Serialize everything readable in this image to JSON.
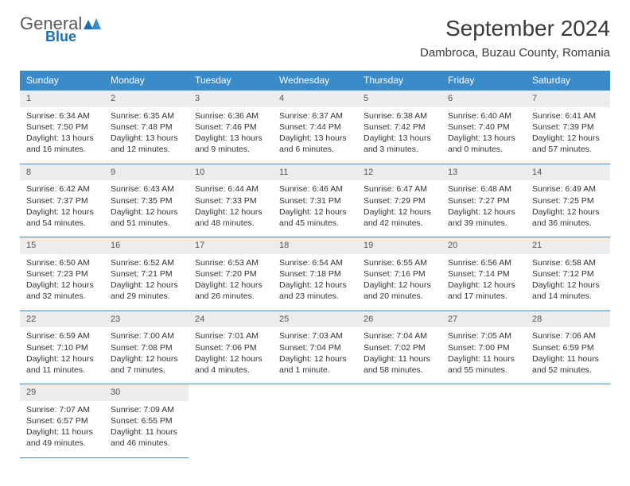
{
  "logo": {
    "word1": "General",
    "word2": "Blue"
  },
  "title": "September 2024",
  "location": "Dambroca, Buzau County, Romania",
  "day_headers": [
    "Sunday",
    "Monday",
    "Tuesday",
    "Wednesday",
    "Thursday",
    "Friday",
    "Saturday"
  ],
  "colors": {
    "header_bg": "#3a8bc9",
    "daynum_bg": "#ececec",
    "border": "#3a8bc9"
  },
  "weeks": [
    [
      {
        "num": "1",
        "sunrise": "6:34 AM",
        "sunset": "7:50 PM",
        "daylight": "13 hours and 16 minutes."
      },
      {
        "num": "2",
        "sunrise": "6:35 AM",
        "sunset": "7:48 PM",
        "daylight": "13 hours and 12 minutes."
      },
      {
        "num": "3",
        "sunrise": "6:36 AM",
        "sunset": "7:46 PM",
        "daylight": "13 hours and 9 minutes."
      },
      {
        "num": "4",
        "sunrise": "6:37 AM",
        "sunset": "7:44 PM",
        "daylight": "13 hours and 6 minutes."
      },
      {
        "num": "5",
        "sunrise": "6:38 AM",
        "sunset": "7:42 PM",
        "daylight": "13 hours and 3 minutes."
      },
      {
        "num": "6",
        "sunrise": "6:40 AM",
        "sunset": "7:40 PM",
        "daylight": "13 hours and 0 minutes."
      },
      {
        "num": "7",
        "sunrise": "6:41 AM",
        "sunset": "7:39 PM",
        "daylight": "12 hours and 57 minutes."
      }
    ],
    [
      {
        "num": "8",
        "sunrise": "6:42 AM",
        "sunset": "7:37 PM",
        "daylight": "12 hours and 54 minutes."
      },
      {
        "num": "9",
        "sunrise": "6:43 AM",
        "sunset": "7:35 PM",
        "daylight": "12 hours and 51 minutes."
      },
      {
        "num": "10",
        "sunrise": "6:44 AM",
        "sunset": "7:33 PM",
        "daylight": "12 hours and 48 minutes."
      },
      {
        "num": "11",
        "sunrise": "6:46 AM",
        "sunset": "7:31 PM",
        "daylight": "12 hours and 45 minutes."
      },
      {
        "num": "12",
        "sunrise": "6:47 AM",
        "sunset": "7:29 PM",
        "daylight": "12 hours and 42 minutes."
      },
      {
        "num": "13",
        "sunrise": "6:48 AM",
        "sunset": "7:27 PM",
        "daylight": "12 hours and 39 minutes."
      },
      {
        "num": "14",
        "sunrise": "6:49 AM",
        "sunset": "7:25 PM",
        "daylight": "12 hours and 36 minutes."
      }
    ],
    [
      {
        "num": "15",
        "sunrise": "6:50 AM",
        "sunset": "7:23 PM",
        "daylight": "12 hours and 32 minutes."
      },
      {
        "num": "16",
        "sunrise": "6:52 AM",
        "sunset": "7:21 PM",
        "daylight": "12 hours and 29 minutes."
      },
      {
        "num": "17",
        "sunrise": "6:53 AM",
        "sunset": "7:20 PM",
        "daylight": "12 hours and 26 minutes."
      },
      {
        "num": "18",
        "sunrise": "6:54 AM",
        "sunset": "7:18 PM",
        "daylight": "12 hours and 23 minutes."
      },
      {
        "num": "19",
        "sunrise": "6:55 AM",
        "sunset": "7:16 PM",
        "daylight": "12 hours and 20 minutes."
      },
      {
        "num": "20",
        "sunrise": "6:56 AM",
        "sunset": "7:14 PM",
        "daylight": "12 hours and 17 minutes."
      },
      {
        "num": "21",
        "sunrise": "6:58 AM",
        "sunset": "7:12 PM",
        "daylight": "12 hours and 14 minutes."
      }
    ],
    [
      {
        "num": "22",
        "sunrise": "6:59 AM",
        "sunset": "7:10 PM",
        "daylight": "12 hours and 11 minutes."
      },
      {
        "num": "23",
        "sunrise": "7:00 AM",
        "sunset": "7:08 PM",
        "daylight": "12 hours and 7 minutes."
      },
      {
        "num": "24",
        "sunrise": "7:01 AM",
        "sunset": "7:06 PM",
        "daylight": "12 hours and 4 minutes."
      },
      {
        "num": "25",
        "sunrise": "7:03 AM",
        "sunset": "7:04 PM",
        "daylight": "12 hours and 1 minute."
      },
      {
        "num": "26",
        "sunrise": "7:04 AM",
        "sunset": "7:02 PM",
        "daylight": "11 hours and 58 minutes."
      },
      {
        "num": "27",
        "sunrise": "7:05 AM",
        "sunset": "7:00 PM",
        "daylight": "11 hours and 55 minutes."
      },
      {
        "num": "28",
        "sunrise": "7:06 AM",
        "sunset": "6:59 PM",
        "daylight": "11 hours and 52 minutes."
      }
    ],
    [
      {
        "num": "29",
        "sunrise": "7:07 AM",
        "sunset": "6:57 PM",
        "daylight": "11 hours and 49 minutes."
      },
      {
        "num": "30",
        "sunrise": "7:09 AM",
        "sunset": "6:55 PM",
        "daylight": "11 hours and 46 minutes."
      },
      null,
      null,
      null,
      null,
      null
    ]
  ],
  "labels": {
    "sunrise": "Sunrise:",
    "sunset": "Sunset:",
    "daylight": "Daylight:"
  }
}
